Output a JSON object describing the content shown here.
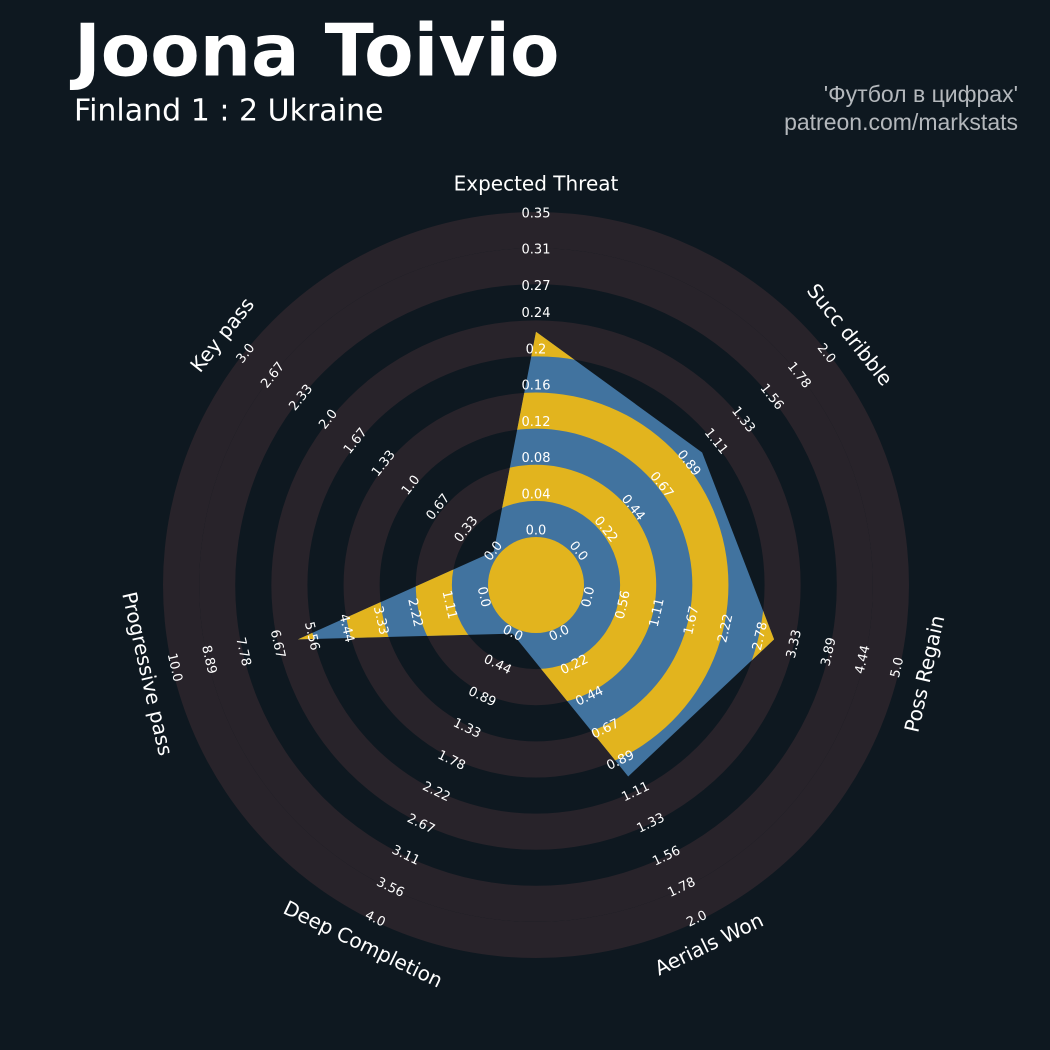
{
  "chart_data": {
    "type": "radar",
    "title": "Joona Toivio",
    "subtitle": "Finland 1 : 2 Ukraine",
    "credits": [
      "'Футбол в цифрах'",
      "patreon.com/markstats"
    ],
    "categories": [
      "Expected Threat",
      "Succ dribble",
      "Poss Regain",
      "Aerials Won",
      "Deep Completion",
      "Progressive pass",
      "Key pass"
    ],
    "values": [
      0.22,
      1.0,
      3.0,
      1.0,
      0.0,
      6.0,
      0.0
    ],
    "ranges": [
      [
        0,
        0.35
      ],
      [
        0,
        2
      ],
      [
        0,
        5
      ],
      [
        0,
        2
      ],
      [
        0,
        4
      ],
      [
        0,
        10
      ],
      [
        0,
        3
      ]
    ],
    "ticks": [
      [
        {
          "value": 0,
          "label": "0.0"
        },
        0.04,
        0.08,
        0.12,
        0.16,
        0.2,
        0.24,
        0.27,
        0.31,
        0.35
      ],
      [
        {
          "value": 0,
          "label": "0.0"
        },
        0.22,
        0.44,
        0.67,
        0.89,
        1.11,
        1.33,
        1.56,
        1.78,
        {
          "value": 2,
          "label": "2.0"
        }
      ],
      [
        {
          "value": 0,
          "label": "0.0"
        },
        0.56,
        1.11,
        1.67,
        2.22,
        2.78,
        3.33,
        3.89,
        4.44,
        {
          "value": 5,
          "label": "5.0"
        }
      ],
      [
        {
          "value": 0,
          "label": "0.0"
        },
        0.22,
        0.44,
        0.67,
        0.89,
        1.11,
        1.33,
        1.56,
        1.78,
        {
          "value": 2,
          "label": "2.0"
        }
      ],
      [
        {
          "value": 0,
          "label": "0.0"
        },
        0.44,
        0.89,
        1.33,
        1.78,
        2.22,
        2.67,
        3.11,
        3.56,
        {
          "value": 4,
          "label": "4.0"
        }
      ],
      [
        {
          "value": 0,
          "label": "0.0"
        },
        1.11,
        2.22,
        3.33,
        4.44,
        5.56,
        6.67,
        7.78,
        8.89,
        {
          "value": 10,
          "label": "10.0"
        }
      ],
      [
        {
          "value": 0,
          "label": "0.0"
        },
        0.33,
        0.67,
        {
          "value": 1,
          "label": "1.0"
        },
        1.33,
        1.67,
        {
          "value": 2,
          "label": "2.0"
        },
        2.33,
        2.67,
        {
          "value": 3,
          "label": "3.0"
        }
      ]
    ],
    "color": "#41739f",
    "highlight_color": "#e2b41e",
    "ring_color": "#28232a",
    "background": "#0e1820"
  }
}
